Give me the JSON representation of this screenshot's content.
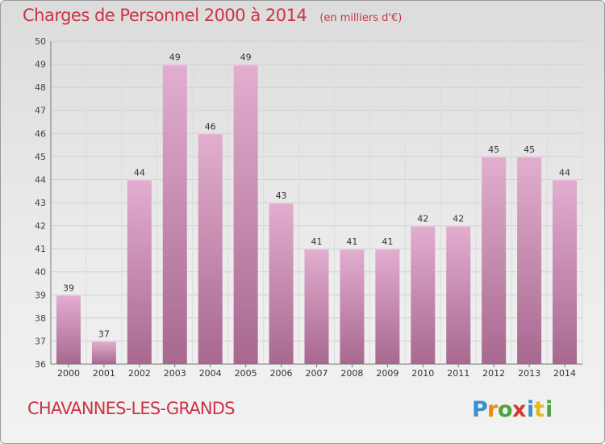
{
  "header": {
    "title": "Charges de Personnel 2000 à 2014",
    "subtitle": "(en milliers d'€)"
  },
  "footer": {
    "place": "CHAVANNES-LES-GRANDS",
    "logo_text": "Proxiti"
  },
  "colors": {
    "accent": "#cc3344",
    "bar_top": "#e2aed0",
    "bar_bottom": "#a8688f"
  },
  "chart_data": {
    "type": "bar",
    "title": "Charges de Personnel 2000 à 2014",
    "subtitle": "(en milliers d'€)",
    "categories": [
      "2000",
      "2001",
      "2002",
      "2003",
      "2004",
      "2005",
      "2006",
      "2007",
      "2008",
      "2009",
      "2010",
      "2011",
      "2012",
      "2013",
      "2014"
    ],
    "values": [
      39,
      37,
      44,
      49,
      46,
      49,
      43,
      41,
      41,
      41,
      42,
      42,
      45,
      45,
      44
    ],
    "ylim": [
      36,
      50
    ],
    "yticks": [
      36,
      37,
      38,
      39,
      40,
      41,
      42,
      43,
      44,
      45,
      46,
      47,
      48,
      49,
      50
    ],
    "grid": true,
    "data_labels": true
  }
}
